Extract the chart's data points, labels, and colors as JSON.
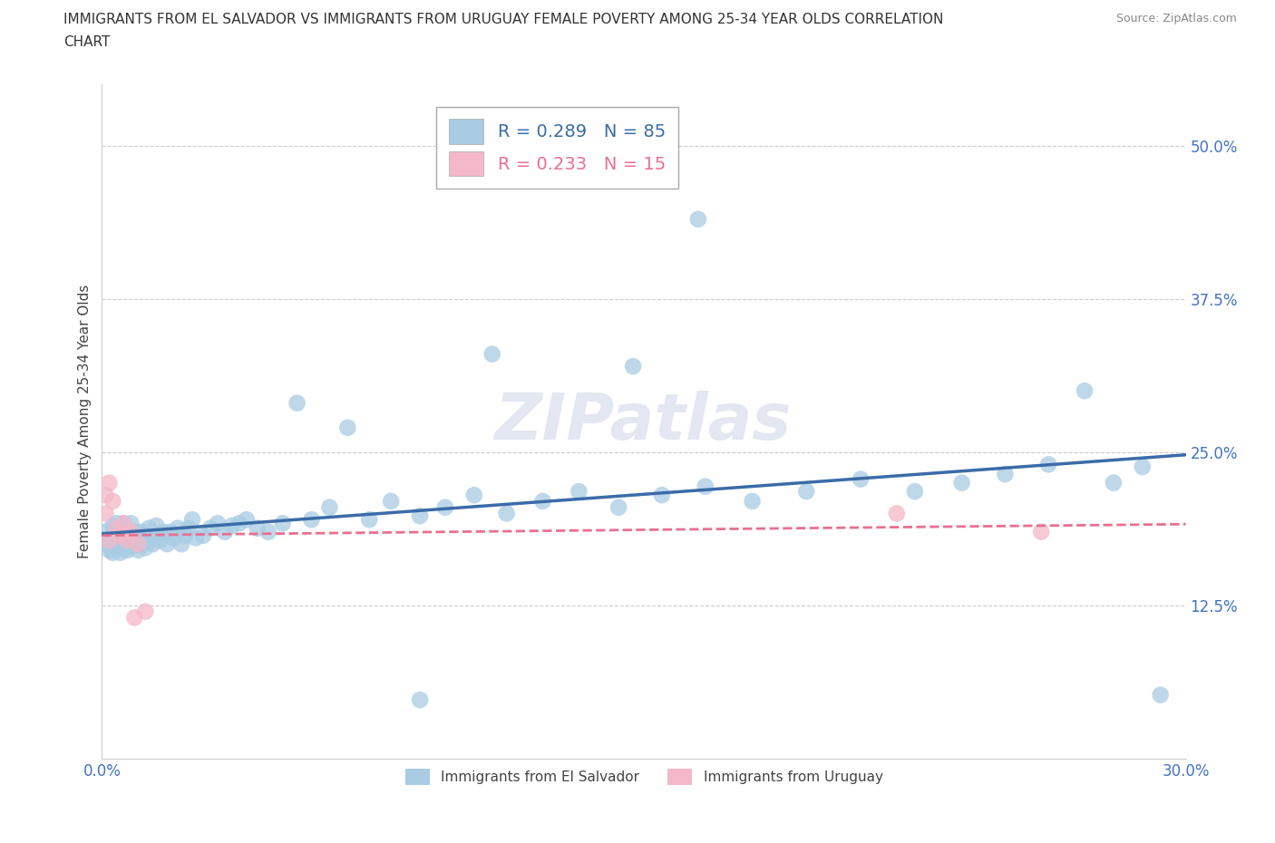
{
  "title_line1": "IMMIGRANTS FROM EL SALVADOR VS IMMIGRANTS FROM URUGUAY FEMALE POVERTY AMONG 25-34 YEAR OLDS CORRELATION",
  "title_line2": "CHART",
  "source": "Source: ZipAtlas.com",
  "ylabel": "Female Poverty Among 25-34 Year Olds",
  "xlim": [
    0.0,
    0.3
  ],
  "ylim": [
    0.0,
    0.55
  ],
  "xticks": [
    0.0,
    0.05,
    0.1,
    0.15,
    0.2,
    0.25,
    0.3
  ],
  "xticklabels": [
    "0.0%",
    "",
    "",
    "",
    "",
    "",
    "30.0%"
  ],
  "yticks": [
    0.125,
    0.25,
    0.375,
    0.5
  ],
  "yticklabels": [
    "12.5%",
    "25.0%",
    "37.5%",
    "50.0%"
  ],
  "el_salvador_R": 0.289,
  "el_salvador_N": 85,
  "uruguay_R": 0.233,
  "uruguay_N": 15,
  "el_salvador_color": "#a8cce4",
  "uruguay_color": "#f4b8c8",
  "el_salvador_line_color": "#3b6ca8",
  "uruguay_line_color": "#e87090",
  "watermark": "ZIPatlas",
  "legend_label_salvador": "Immigrants from El Salvador",
  "legend_label_uruguay": "Immigrants from Uruguay",
  "el_salvador_x": [
    0.001,
    0.001,
    0.002,
    0.002,
    0.003,
    0.003,
    0.003,
    0.004,
    0.004,
    0.004,
    0.005,
    0.005,
    0.005,
    0.006,
    0.006,
    0.006,
    0.007,
    0.007,
    0.008,
    0.008,
    0.008,
    0.009,
    0.009,
    0.01,
    0.01,
    0.011,
    0.011,
    0.012,
    0.012,
    0.013,
    0.013,
    0.014,
    0.015,
    0.015,
    0.016,
    0.017,
    0.018,
    0.019,
    0.02,
    0.021,
    0.022,
    0.023,
    0.024,
    0.025,
    0.026,
    0.028,
    0.03,
    0.032,
    0.034,
    0.036,
    0.038,
    0.04,
    0.043,
    0.046,
    0.05,
    0.054,
    0.058,
    0.063,
    0.068,
    0.074,
    0.08,
    0.088,
    0.095,
    0.103,
    0.112,
    0.122,
    0.132,
    0.143,
    0.155,
    0.167,
    0.18,
    0.195,
    0.21,
    0.225,
    0.238,
    0.25,
    0.262,
    0.272,
    0.28,
    0.288,
    0.147,
    0.108,
    0.088,
    0.165,
    0.293
  ],
  "el_salvador_y": [
    0.175,
    0.185,
    0.17,
    0.18,
    0.168,
    0.178,
    0.19,
    0.172,
    0.182,
    0.192,
    0.168,
    0.178,
    0.188,
    0.175,
    0.182,
    0.192,
    0.17,
    0.185,
    0.172,
    0.182,
    0.192,
    0.175,
    0.185,
    0.17,
    0.18,
    0.175,
    0.185,
    0.172,
    0.182,
    0.178,
    0.188,
    0.175,
    0.182,
    0.19,
    0.178,
    0.185,
    0.175,
    0.185,
    0.18,
    0.188,
    0.175,
    0.182,
    0.188,
    0.195,
    0.18,
    0.182,
    0.188,
    0.192,
    0.185,
    0.19,
    0.192,
    0.195,
    0.188,
    0.185,
    0.192,
    0.29,
    0.195,
    0.205,
    0.27,
    0.195,
    0.21,
    0.198,
    0.205,
    0.215,
    0.2,
    0.21,
    0.218,
    0.205,
    0.215,
    0.222,
    0.21,
    0.218,
    0.228,
    0.218,
    0.225,
    0.232,
    0.24,
    0.3,
    0.225,
    0.238,
    0.32,
    0.33,
    0.048,
    0.44,
    0.052
  ],
  "uruguay_x": [
    0.001,
    0.001,
    0.002,
    0.002,
    0.003,
    0.004,
    0.005,
    0.006,
    0.007,
    0.008,
    0.009,
    0.01,
    0.012,
    0.22,
    0.26
  ],
  "uruguay_y": [
    0.2,
    0.215,
    0.178,
    0.225,
    0.21,
    0.188,
    0.182,
    0.192,
    0.178,
    0.185,
    0.115,
    0.175,
    0.12,
    0.2,
    0.185
  ]
}
